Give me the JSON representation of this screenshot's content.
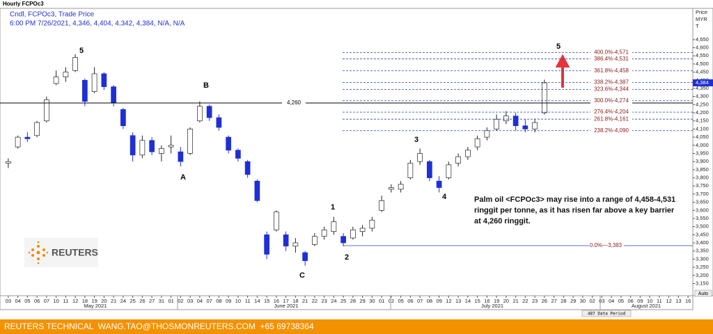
{
  "chart_data": {
    "type": "candlestick",
    "title": "Hourly FCPOc3",
    "legend_lines": [
      "Cndl, FCPOc3, Trade Price",
      "6:00 PM 7/26/2021, 4,346, 4,404, 4,342, 4,384, N/A, N/A"
    ],
    "y_axis_label": [
      "Price",
      "MYR",
      "T"
    ],
    "categories": [
      "03",
      "04",
      "05",
      "06",
      "07",
      "10",
      "11",
      "12",
      "18",
      "19",
      "20",
      "21",
      "24",
      "25",
      "26",
      "27",
      "31",
      "01",
      "02",
      "03",
      "04",
      "07",
      "08",
      "09",
      "10",
      "11",
      "14",
      "15",
      "16",
      "17",
      "18",
      "21",
      "22",
      "23",
      "24",
      "25",
      "28",
      "29",
      "30",
      "01",
      "02",
      "05",
      "06",
      "07",
      "08",
      "09",
      "12",
      "13",
      "14",
      "15",
      "16",
      "19",
      "20",
      "21",
      "22",
      "23",
      "26",
      "27",
      "28",
      "29",
      "30",
      "02",
      "03",
      "04",
      "05",
      "06",
      "09",
      "10",
      "11",
      "12",
      "13",
      "16"
    ],
    "months": [
      "May 2021",
      "June 2021",
      "July 2021",
      "August 2021"
    ],
    "open": [
      3890,
      3990,
      4050,
      4060,
      4150,
      4380,
      4420,
      4460,
      4400,
      4330,
      4440,
      4360,
      4220,
      4060,
      3940,
      4030,
      3950,
      3990,
      3960,
      3950,
      4150,
      4240,
      4170,
      4050,
      3970,
      3900,
      3780,
      3450,
      3480,
      3450,
      3380,
      3340,
      3390,
      3440,
      3470,
      3440,
      3430,
      3470,
      3490,
      3600,
      3730,
      3730,
      3800,
      3900,
      3900,
      3780,
      3800,
      3890,
      3930,
      3990,
      4050,
      4100,
      4150,
      4180,
      4120,
      4100,
      4200,
      null,
      null,
      null,
      null,
      null,
      null,
      null,
      null,
      null,
      null,
      null,
      null,
      null,
      null,
      null
    ],
    "high": [
      3920,
      4060,
      4080,
      4150,
      4300,
      4460,
      4480,
      4560,
      4410,
      4480,
      4450,
      4370,
      4230,
      4080,
      4060,
      4050,
      4000,
      4060,
      3990,
      4110,
      4270,
      4250,
      4190,
      4060,
      3980,
      3910,
      3790,
      3470,
      3600,
      3470,
      3430,
      3350,
      3460,
      3500,
      3560,
      3460,
      3500,
      3510,
      3560,
      3690,
      3760,
      3780,
      3910,
      3980,
      3910,
      3810,
      3900,
      3950,
      3990,
      4060,
      4110,
      4190,
      4210,
      4200,
      4160,
      4160,
      4404,
      null,
      null,
      null,
      null,
      null,
      null,
      null,
      null,
      null,
      null,
      null,
      null,
      null,
      null,
      null
    ],
    "low": [
      3860,
      3980,
      4020,
      4050,
      4140,
      4370,
      4390,
      4450,
      4240,
      4320,
      4340,
      4240,
      4100,
      3900,
      3920,
      3940,
      3900,
      3950,
      3870,
      3940,
      4140,
      4150,
      4090,
      3950,
      3900,
      3800,
      3650,
      3300,
      3470,
      3350,
      3340,
      3260,
      3380,
      3420,
      3450,
      3380,
      3420,
      3440,
      3470,
      3590,
      3710,
      3710,
      3790,
      3880,
      3780,
      3710,
      3790,
      3870,
      3910,
      3970,
      4030,
      4090,
      4130,
      4090,
      4080,
      4080,
      4190,
      null,
      null,
      null,
      null,
      null,
      null,
      null,
      null,
      null,
      null,
      null,
      null,
      null,
      null,
      null
    ],
    "close": [
      3900,
      4050,
      4040,
      4140,
      4280,
      4420,
      4450,
      4540,
      4270,
      4440,
      4360,
      4260,
      4120,
      3940,
      4030,
      3960,
      3980,
      4000,
      3900,
      4100,
      4240,
      4170,
      4110,
      3970,
      3920,
      3820,
      3660,
      3330,
      3590,
      3380,
      3400,
      3290,
      3440,
      3480,
      3530,
      3400,
      3480,
      3490,
      3540,
      3660,
      3740,
      3760,
      3890,
      3950,
      3800,
      3740,
      3880,
      3930,
      3970,
      4040,
      4090,
      4160,
      4180,
      4120,
      4100,
      4140,
      4384,
      null,
      null,
      null,
      null,
      null,
      null,
      null,
      null,
      null,
      null,
      null,
      null,
      null,
      null,
      null
    ],
    "up_color": "#ffffff",
    "down_color": "#1f2fd6",
    "ylim": [
      3075,
      4842
    ],
    "yticks": [
      {
        "value": 3150,
        "label": "3,150"
      },
      {
        "value": 3200,
        "label": "3,200"
      },
      {
        "value": 3250,
        "label": "3,250"
      },
      {
        "value": 3300,
        "label": "3,300"
      },
      {
        "value": 3350,
        "label": "3,350"
      },
      {
        "value": 3400,
        "label": "3,400"
      },
      {
        "value": 3450,
        "label": "3,450"
      },
      {
        "value": 3500,
        "label": "3,500"
      },
      {
        "value": 3550,
        "label": "3,550"
      },
      {
        "value": 3600,
        "label": "3,600"
      },
      {
        "value": 3650,
        "label": "3,650"
      },
      {
        "value": 3700,
        "label": "3,700"
      },
      {
        "value": 3750,
        "label": "3,750"
      },
      {
        "value": 3800,
        "label": "3,800"
      },
      {
        "value": 3850,
        "label": "3,850"
      },
      {
        "value": 3900,
        "label": "3,900"
      },
      {
        "value": 3950,
        "label": "3,950"
      },
      {
        "value": 4000,
        "label": "4,000"
      },
      {
        "value": 4050,
        "label": "4,050"
      },
      {
        "value": 4100,
        "label": "4,100"
      },
      {
        "value": 4150,
        "label": "4,150"
      },
      {
        "value": 4200,
        "label": "4,200"
      },
      {
        "value": 4250,
        "label": "4,250"
      },
      {
        "value": 4300,
        "label": "4,300"
      },
      {
        "value": 4350,
        "label": "4,350"
      },
      {
        "value": 4400,
        "label": "4,400"
      },
      {
        "value": 4450,
        "label": "4,450"
      },
      {
        "value": 4500,
        "label": "4,500"
      },
      {
        "value": 4550,
        "label": "4,550"
      },
      {
        "value": 4600,
        "label": "4,600"
      },
      {
        "value": 4650,
        "label": "4,650"
      }
    ],
    "last_price": {
      "value": 4384,
      "label": "4,384"
    },
    "key_level": {
      "value": 4260,
      "label": "4,260"
    },
    "fib_levels": [
      {
        "value": 4571,
        "label": "400.0%-4,571"
      },
      {
        "value": 4531,
        "label": "386.4%-4,531"
      },
      {
        "value": 4458,
        "label": "361.8%-4,458"
      },
      {
        "value": 4387,
        "label": "338.2%-4,387"
      },
      {
        "value": 4344,
        "label": "323.6%-4,344"
      },
      {
        "value": 4274,
        "label": "300.0%-4,274"
      },
      {
        "value": 4204,
        "label": "276.4%-4,204"
      },
      {
        "value": 4161,
        "label": "261.8%-4,161"
      },
      {
        "value": 4090,
        "label": "238.2%-4,090"
      }
    ],
    "base_level": {
      "value": 3383,
      "label": "0.0%—3,383"
    },
    "wave_labels": [
      "5",
      "B",
      "A",
      "C",
      "1",
      "2",
      "3",
      "4",
      "5"
    ],
    "annotation": [
      "Palm oil <FCPOc3> may rise into a range of 4,458-4,531",
      "ringgit per tonne, as it has risen far above a key barrier",
      "at 4,260 ringgit."
    ],
    "logo": "REUTERS",
    "data_period": "487 Data Period",
    "scale_mode": "Auto",
    "footer": "REUTERS TECHNICAL  WANG.TAO@THOSMONREUTERS.COM  +65 69738364"
  }
}
